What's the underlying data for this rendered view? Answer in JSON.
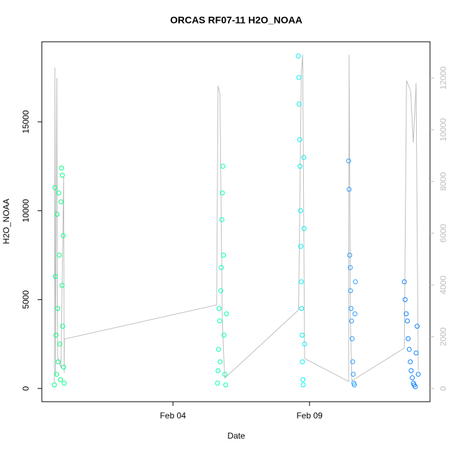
{
  "chart_data": {
    "type": "scatter",
    "title": "ORCAS RF07-11 H2O_NOAA",
    "x_label": "Date",
    "y_label": "H2O_NOAA",
    "xlim": [
      -0.8,
      13.41
    ],
    "xticks": [
      {
        "value": 4,
        "label": "Feb 04"
      },
      {
        "value": 9,
        "label": "Feb 09"
      }
    ],
    "ylim": [
      -744,
      19505
    ],
    "yticks": [
      0,
      5000,
      10000,
      15000
    ],
    "y2lim": [
      -511,
      13399
    ],
    "y2ticks": [
      0,
      2000,
      4000,
      6000,
      8000,
      10000,
      12000
    ],
    "y2_color": "#bebebe",
    "series": [
      {
        "type": "line",
        "axis": "y2",
        "color": "#bebebe",
        "x": [
          -0.34,
          -0.32,
          -0.3,
          -0.25,
          -0.22,
          -0.1,
          0.0,
          0.02,
          0.03,
          5.6,
          5.65,
          5.72,
          5.8,
          5.85,
          5.9,
          8.6,
          8.7,
          8.75,
          8.82,
          10.43,
          10.45,
          10.5,
          10.55,
          12.47,
          12.55,
          12.7,
          12.8,
          12.9,
          12.98
        ],
        "values": [
          200,
          12400,
          500,
          12000,
          1200,
          800,
          8200,
          600,
          1910,
          3230,
          11700,
          11400,
          3000,
          1430,
          400,
          3040,
          12200,
          12900,
          1157,
          270,
          12900,
          2450,
          300,
          1560,
          11900,
          11500,
          9500,
          11800,
          700
        ]
      },
      {
        "type": "scatter",
        "color": "#00ff80",
        "x": [
          -0.34,
          -0.32,
          -0.3,
          -0.28,
          -0.26,
          -0.24,
          -0.22,
          -0.2,
          -0.18,
          -0.16,
          -0.14,
          -0.12,
          -0.1,
          -0.08,
          -0.06,
          -0.04,
          -0.02,
          0.0,
          0.02,
          -0.05
        ],
        "values": [
          200,
          11300,
          6300,
          3000,
          800,
          9800,
          4500,
          1500,
          11000,
          7500,
          2500,
          500,
          10500,
          12400,
          5800,
          3500,
          8600,
          1200,
          300,
          12000
        ]
      },
      {
        "type": "scatter",
        "color": "#00ffb8",
        "x": [
          5.63,
          5.65,
          5.67,
          5.69,
          5.71,
          5.73,
          5.75,
          5.77,
          5.79,
          5.81,
          5.83,
          5.85,
          5.87,
          5.9,
          5.93,
          5.96
        ],
        "values": [
          300,
          1000,
          2200,
          4500,
          3800,
          1500,
          5500,
          6800,
          9500,
          11000,
          12500,
          7500,
          3000,
          800,
          200,
          4200
        ]
      },
      {
        "type": "scatter",
        "color": "#00f0f0",
        "x": [
          8.59,
          8.61,
          8.62,
          8.64,
          8.65,
          8.67,
          8.68,
          8.7,
          8.71,
          8.73,
          8.74,
          8.76,
          8.77,
          8.79,
          8.8,
          8.82
        ],
        "values": [
          18700,
          17500,
          16000,
          14000,
          12500,
          10000,
          8000,
          6000,
          4500,
          3000,
          1500,
          500,
          200,
          13000,
          9000,
          2500
        ]
      },
      {
        "type": "scatter",
        "color": "#2c9cff",
        "x": [
          10.43,
          10.45,
          10.47,
          10.49,
          10.5,
          10.52,
          10.54,
          10.56,
          10.58,
          10.6,
          10.62,
          10.64,
          10.66,
          10.68
        ],
        "values": [
          12800,
          11200,
          7500,
          6800,
          5500,
          4500,
          3800,
          2800,
          1500,
          800,
          300,
          200,
          4200,
          6000
        ]
      },
      {
        "type": "scatter",
        "color": "#0a80ff",
        "x": [
          12.47,
          12.5,
          12.54,
          12.58,
          12.61,
          12.65,
          12.69,
          12.72,
          12.76,
          12.8,
          12.83,
          12.87,
          12.9,
          12.94,
          12.98
        ],
        "values": [
          6000,
          5000,
          4200,
          3800,
          2800,
          2200,
          1500,
          1000,
          600,
          300,
          200,
          100,
          2000,
          3500,
          800
        ]
      }
    ]
  }
}
